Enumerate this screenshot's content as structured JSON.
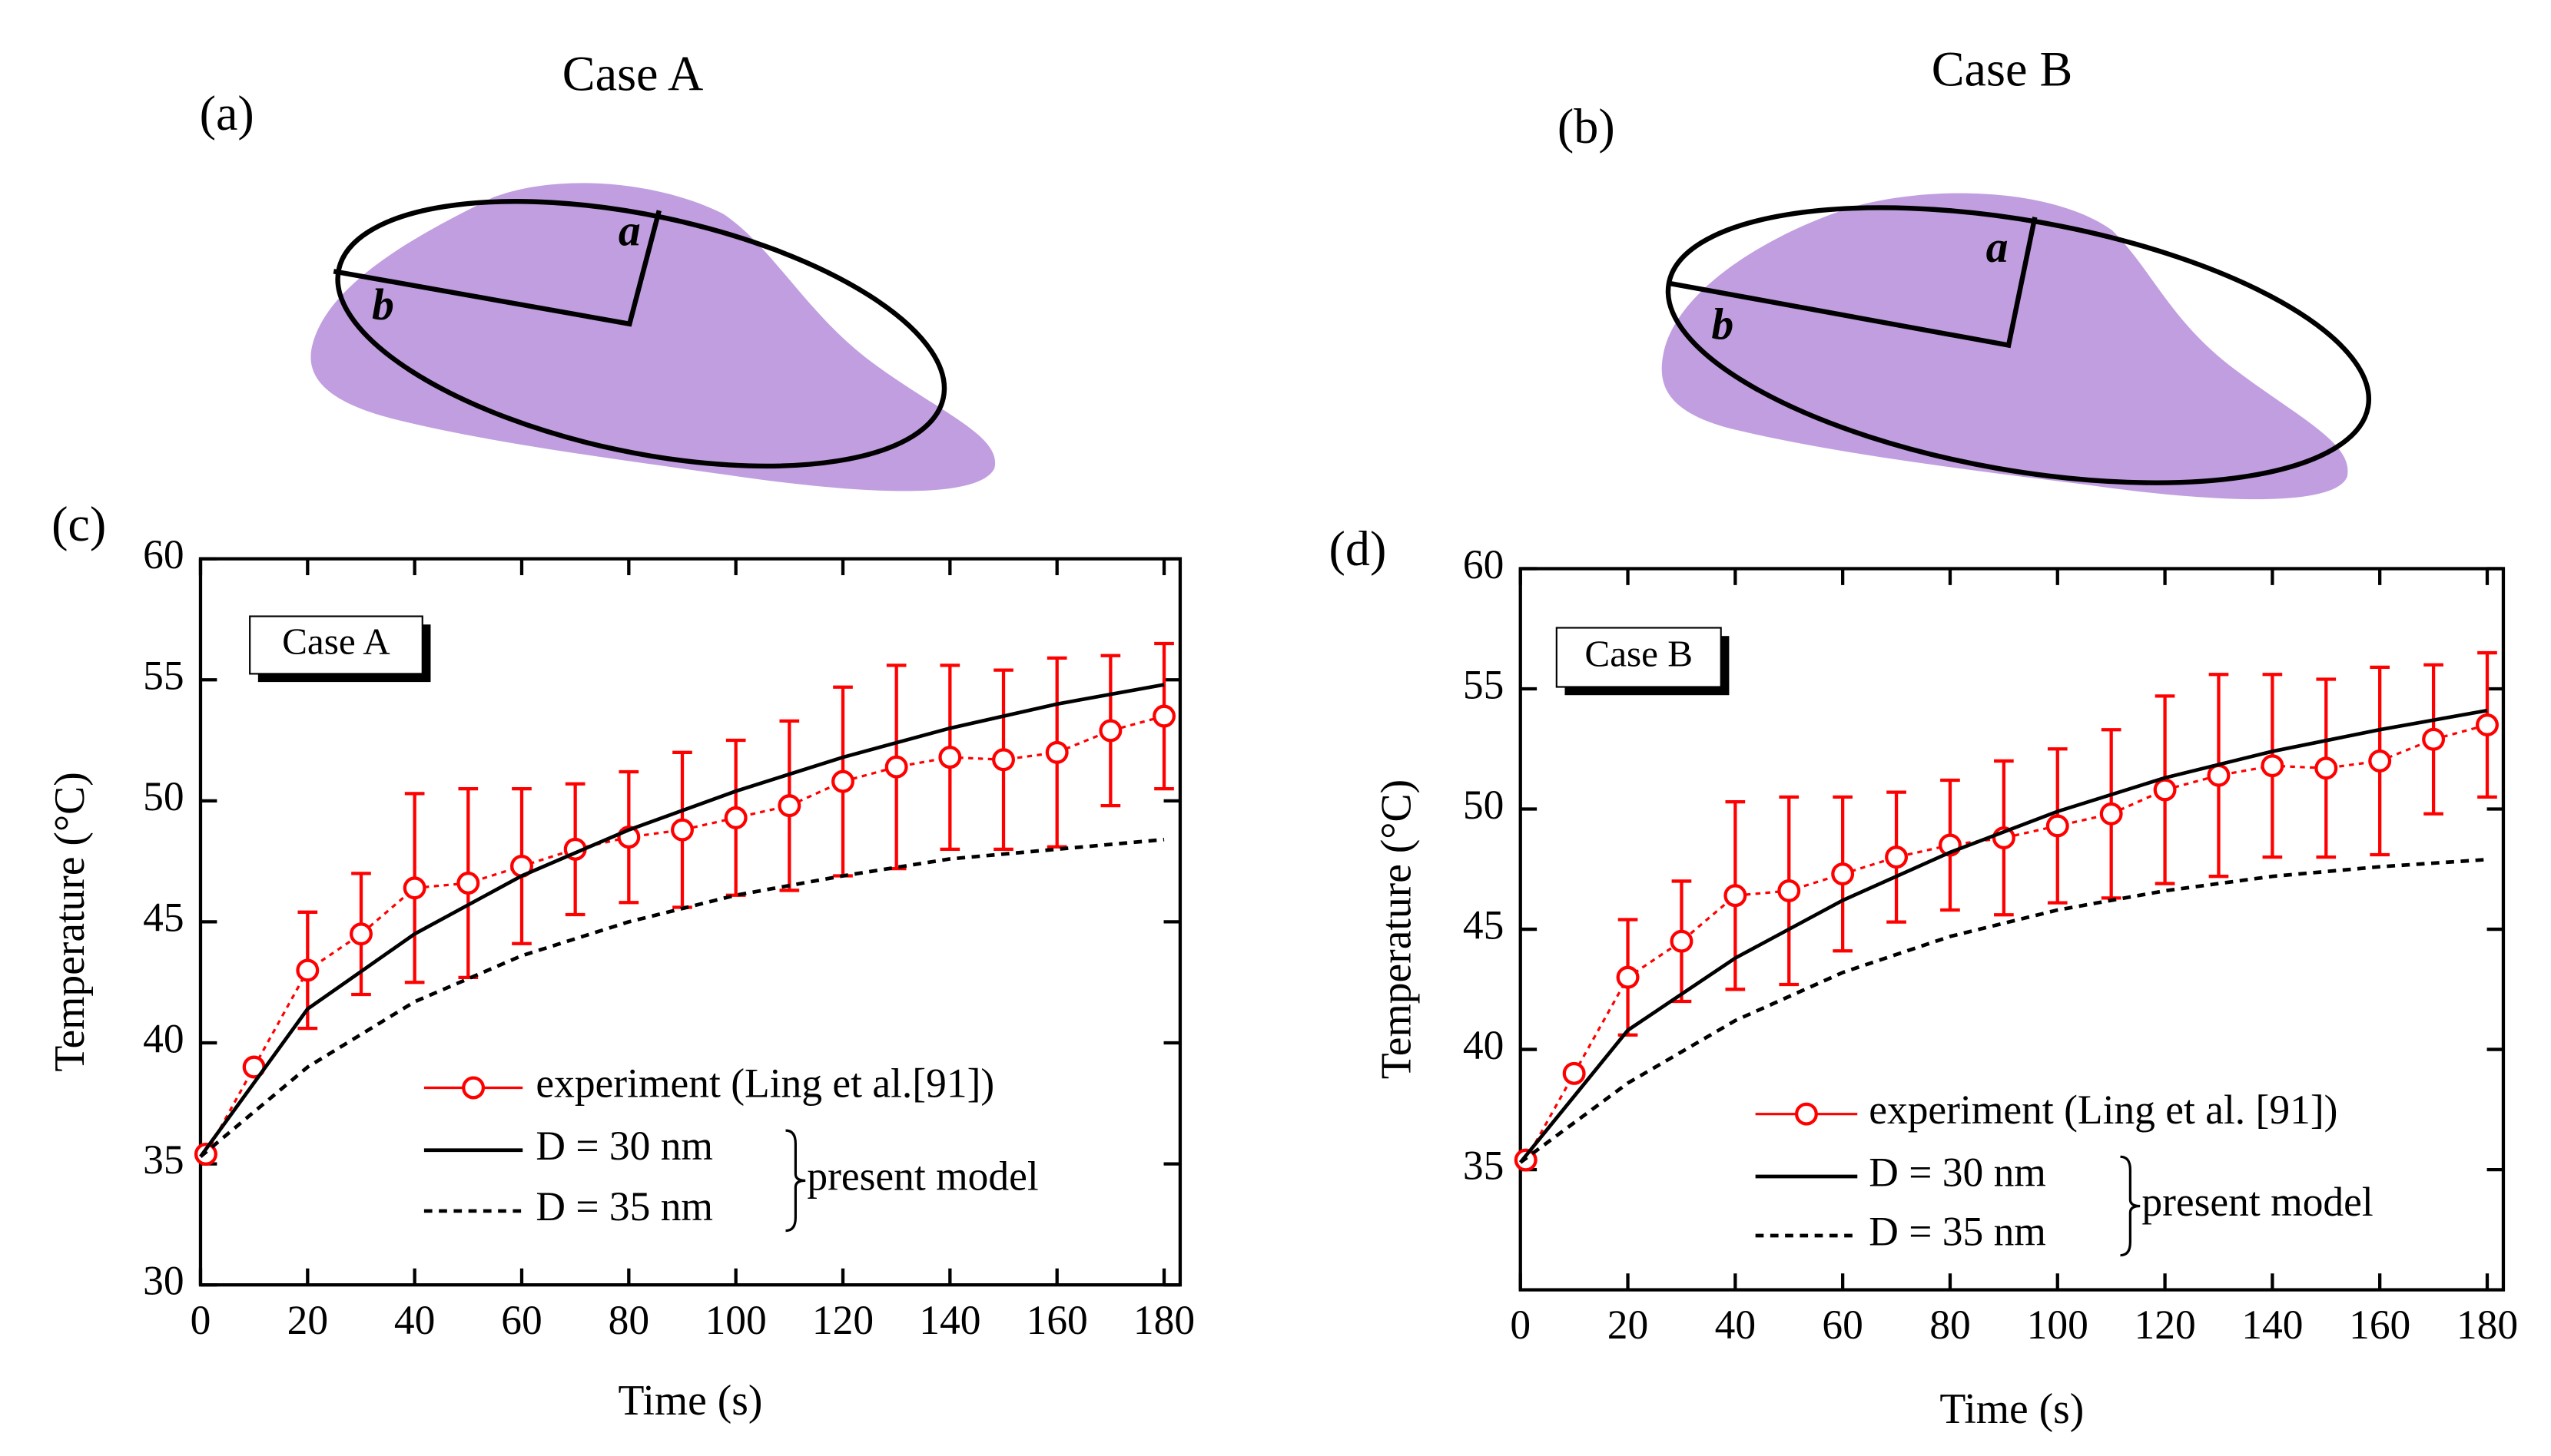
{
  "diagrams": [
    {
      "panel": "(a)",
      "title": "Case A",
      "labels": [
        "a",
        "b"
      ]
    },
    {
      "panel": "(b)",
      "title": "Case B",
      "labels": [
        "a",
        "b"
      ]
    }
  ],
  "chart_data": [
    {
      "type": "line",
      "panel": "(c)",
      "inset_label": "Case A",
      "xlabel": "Time (s)",
      "ylabel": "Temperature (°C)",
      "legend_group_label": "present model",
      "xlim": [
        0,
        183
      ],
      "xticks": [
        0,
        20,
        40,
        60,
        80,
        100,
        120,
        140,
        160,
        180
      ],
      "ylim": [
        30,
        60
      ],
      "yticks": [
        30,
        35,
        40,
        45,
        50,
        55,
        60
      ],
      "series": [
        {
          "name": "experiment (Ling et al.[91])",
          "color": "#ff0000",
          "style": "dotted-markers",
          "x": [
            1,
            10,
            20,
            30,
            40,
            50,
            60,
            70,
            80,
            90,
            100,
            110,
            120,
            130,
            140,
            150,
            160,
            170,
            180
          ],
          "values": [
            35.4,
            39,
            43,
            44.5,
            46.4,
            46.6,
            47.3,
            48,
            48.5,
            48.8,
            49.3,
            49.8,
            50.8,
            51.4,
            51.8,
            51.7,
            52,
            52.9,
            53.5
          ],
          "errors": [
            null,
            null,
            2.4,
            2.5,
            3.9,
            3.9,
            3.2,
            2.7,
            2.7,
            3.2,
            3.2,
            3.5,
            3.9,
            4.2,
            3.8,
            3.7,
            3.9,
            3.1,
            3
          ]
        },
        {
          "name": "D = 30 nm",
          "color": "#000000",
          "style": "solid",
          "x": [
            0,
            20,
            40,
            60,
            80,
            100,
            120,
            140,
            160,
            180
          ],
          "values": [
            35.3,
            41.4,
            44.5,
            46.9,
            48.8,
            50.4,
            51.8,
            53,
            54,
            54.8
          ]
        },
        {
          "name": "D = 35 nm",
          "color": "#000000",
          "style": "dashed",
          "x": [
            0,
            20,
            40,
            60,
            80,
            100,
            120,
            140,
            160,
            180
          ],
          "values": [
            35.3,
            39,
            41.7,
            43.6,
            45,
            46.1,
            46.9,
            47.6,
            48,
            48.4
          ]
        }
      ]
    },
    {
      "type": "line",
      "panel": "(d)",
      "inset_label": "Case B",
      "xlabel": "Time (s)",
      "ylabel": "Temperature (°C)",
      "legend_group_label": "present model",
      "xlim": [
        0,
        183
      ],
      "xticks": [
        0,
        20,
        40,
        60,
        80,
        100,
        120,
        140,
        160,
        180
      ],
      "ylim": [
        30,
        60
      ],
      "yticks": [
        35,
        40,
        45,
        50,
        55,
        60
      ],
      "series": [
        {
          "name": "experiment (Ling et al. [91])",
          "color": "#ff0000",
          "style": "dotted-markers",
          "x": [
            1,
            10,
            20,
            30,
            40,
            50,
            60,
            70,
            80,
            90,
            100,
            110,
            120,
            130,
            140,
            150,
            160,
            170,
            180
          ],
          "values": [
            35.4,
            39,
            43,
            44.5,
            46.4,
            46.6,
            47.3,
            48,
            48.5,
            48.8,
            49.3,
            49.8,
            50.8,
            51.4,
            51.8,
            51.7,
            52,
            52.9,
            53.5
          ],
          "errors": [
            null,
            null,
            2.4,
            2.5,
            3.9,
            3.9,
            3.2,
            2.7,
            2.7,
            3.2,
            3.2,
            3.5,
            3.9,
            4.2,
            3.8,
            3.7,
            3.9,
            3.1,
            3
          ]
        },
        {
          "name": "D = 30 nm",
          "color": "#000000",
          "style": "solid",
          "x": [
            0,
            20,
            40,
            60,
            80,
            100,
            120,
            140,
            160,
            180
          ],
          "values": [
            35.3,
            40.8,
            43.8,
            46.2,
            48.2,
            49.9,
            51.3,
            52.4,
            53.3,
            54.1
          ]
        },
        {
          "name": "D = 35 nm",
          "color": "#000000",
          "style": "dashed",
          "x": [
            0,
            20,
            40,
            60,
            80,
            100,
            120,
            140,
            160,
            180
          ],
          "values": [
            35.3,
            38.6,
            41.2,
            43.2,
            44.7,
            45.8,
            46.6,
            47.2,
            47.6,
            47.9
          ]
        }
      ]
    }
  ]
}
